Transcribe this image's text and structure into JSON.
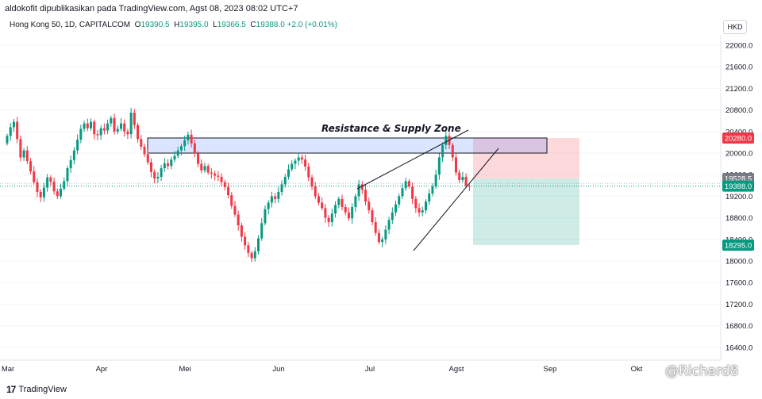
{
  "header": {
    "attribution": "aldokofit dipublikasikan pada TradingView.com, Agst 08, 2023 08:02 UTC+7"
  },
  "legend": {
    "symbol": "Hong Kong 50, 1D, CAPITALCOM",
    "o_label": "O",
    "o": "19390.5",
    "h_label": "H",
    "h": "19395.0",
    "l_label": "L",
    "l": "19366.5",
    "c_label": "C",
    "c": "19388.0",
    "change": "+2.0 (+0.01%)"
  },
  "currency": "HKD",
  "footer": {
    "logo": "17",
    "brand": "TradingView"
  },
  "watermark": "@Richard8",
  "colors": {
    "up": "#089981",
    "down": "#f23645",
    "zone": "#2962ff",
    "stop": "#f7525f",
    "target": "#089981"
  },
  "chart_data": {
    "type": "candlestick",
    "title": "Hong Kong 50, 1D, CAPITALCOM",
    "ylim": [
      16200,
      22350
    ],
    "y_ticks": [
      "22000.0",
      "21600.0",
      "21200.0",
      "20800.0",
      "20400.0",
      "20000.0",
      "19600.0",
      "19200.0",
      "18800.0",
      "18400.0",
      "18000.0",
      "17600.0",
      "17200.0",
      "16800.0",
      "16400.0"
    ],
    "x_ticks": [
      "Mar",
      "Apr",
      "Mei",
      "Jun",
      "Jul",
      "Agst",
      "Sep",
      "Okt"
    ],
    "price_labels": [
      {
        "text": "20280.0",
        "value": 20280,
        "kind": "stop"
      },
      {
        "text": "19528.5",
        "value": 19528.5,
        "kind": "entry"
      },
      {
        "text": "19388.0",
        "value": 19388,
        "kind": "last"
      },
      {
        "text": "18295.0",
        "value": 18295,
        "kind": "target"
      }
    ],
    "annotation": {
      "text": "Resistance & Supply Zone",
      "zone_low": 20000,
      "zone_high": 20280
    },
    "position": {
      "entry": 19528.5,
      "stop": 20280,
      "target": 18295
    },
    "closes": [
      20320,
      20480,
      20580,
      20260,
      19920,
      20050,
      19850,
      19660,
      19460,
      19280,
      19180,
      19360,
      19550,
      19470,
      19290,
      19200,
      19340,
      19480,
      19720,
      19870,
      20050,
      20250,
      20450,
      20550,
      20460,
      20580,
      20350,
      20330,
      20460,
      20420,
      20550,
      20650,
      20400,
      20450,
      20550,
      20400,
      20350,
      20750,
      20520,
      20260,
      20120,
      19980,
      19830,
      19650,
      19530,
      19560,
      19720,
      19810,
      19760,
      19880,
      19950,
      20050,
      20130,
      20240,
      20340,
      20180,
      19990,
      19800,
      19680,
      19760,
      19640,
      19620,
      19580,
      19560,
      19460,
      19370,
      19220,
      19020,
      18860,
      18660,
      18450,
      18290,
      18150,
      18050,
      18180,
      18420,
      18700,
      18960,
      19080,
      19200,
      19150,
      19280,
      19420,
      19560,
      19700,
      19800,
      19860,
      19920,
      19880,
      19750,
      19550,
      19380,
      19200,
      19080,
      18980,
      18800,
      18720,
      18880,
      19040,
      19150,
      19000,
      18900,
      18790,
      19000,
      19200,
      19420,
      19320,
      19100,
      18940,
      18720,
      18520,
      18350,
      18400,
      18580,
      18760,
      18900,
      19050,
      19200,
      19350,
      19480,
      19380,
      19150,
      18980,
      18900,
      18940,
      19100,
      19250,
      19380,
      19600,
      19920,
      20150,
      20320,
      20150,
      19920,
      19640,
      19500,
      19560,
      19390,
      19388
    ]
  }
}
